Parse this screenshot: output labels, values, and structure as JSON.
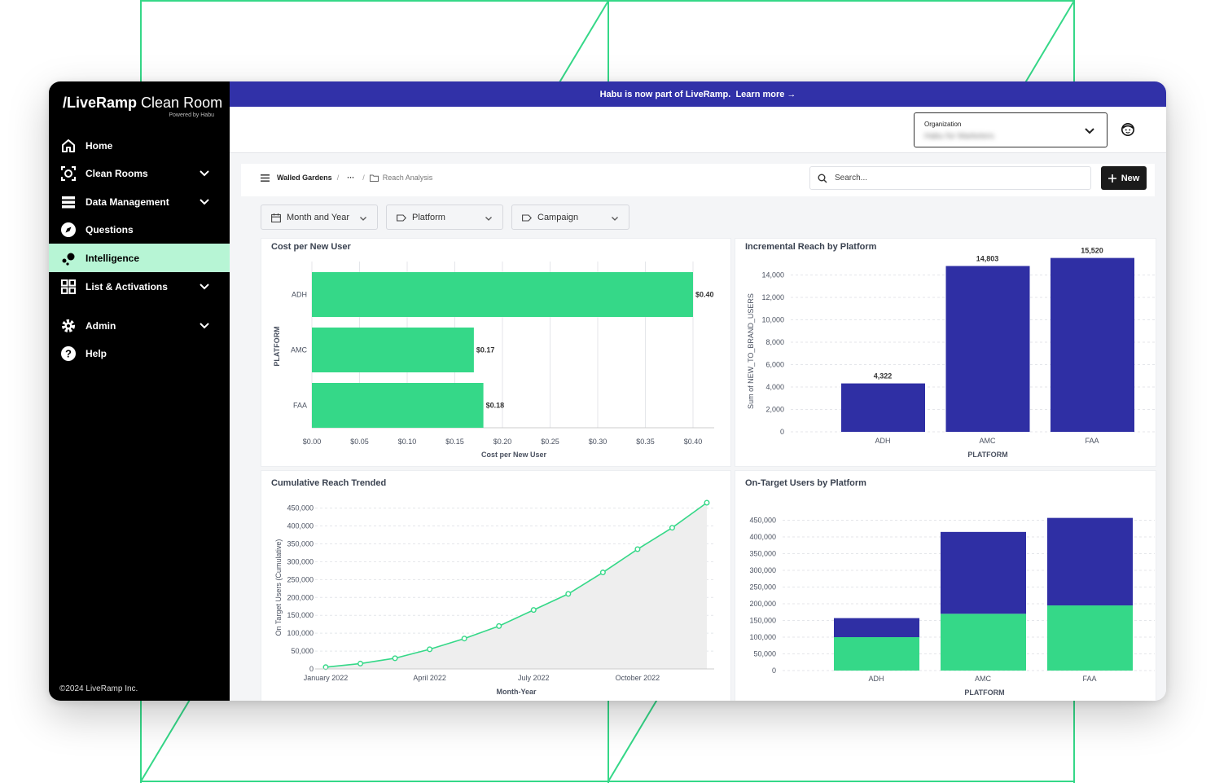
{
  "sidebar": {
    "brand_bold": "/LiveRamp",
    "brand_light": " Clean Room",
    "brand_sub": "Powered by Habu",
    "items": [
      {
        "label": "Home",
        "icon": "home-icon"
      },
      {
        "label": "Clean Rooms",
        "icon": "clean-room-icon"
      },
      {
        "label": "Data Management",
        "icon": "database-icon"
      },
      {
        "label": "Questions",
        "icon": "compass-icon"
      },
      {
        "label": "Intelligence",
        "icon": "intelligence-icon"
      },
      {
        "label": "List & Activations",
        "icon": "grid-icon"
      },
      {
        "label": "Admin",
        "icon": "gear-icon"
      },
      {
        "label": "Help",
        "icon": "help-icon"
      }
    ],
    "copyright": "©2024 LiveRamp Inc."
  },
  "banner": {
    "text": "Habu is now part of LiveRamp.",
    "link": "Learn more →"
  },
  "topbar": {
    "org_label": "Organization",
    "org_value": "Habu for Marketers"
  },
  "breadcrumb": {
    "root": "Walled Gardens",
    "ellipsis": "···",
    "current": "Reach Analysis"
  },
  "search": {
    "placeholder": "Search..."
  },
  "new_button": {
    "label": "New"
  },
  "filters": [
    {
      "label": "Month and Year",
      "icon": "calendar-icon"
    },
    {
      "label": "Platform",
      "icon": "tag-icon"
    },
    {
      "label": "Campaign",
      "icon": "tag-icon"
    }
  ],
  "colors": {
    "green": "#35d888",
    "navy": "#2f2fa4",
    "banner": "#3131a8",
    "active_nav": "#b7f5d5"
  },
  "chart_data": [
    {
      "id": "cost",
      "type": "bar",
      "orientation": "horizontal",
      "title": "Cost per New User",
      "categories": [
        "ADH",
        "AMC",
        "FAA"
      ],
      "values": [
        0.4,
        0.17,
        0.18
      ],
      "data_labels": [
        "$0.40",
        "$0.17",
        "$0.18"
      ],
      "xticks": [
        "$0.00",
        "$0.05",
        "$0.10",
        "$0.15",
        "$0.20",
        "$0.25",
        "$0.30",
        "$0.35",
        "$0.40"
      ],
      "xlim": [
        0,
        0.4
      ],
      "xlabel": "Cost per New User",
      "ylabel": "PLATFORM",
      "color": "#35d888"
    },
    {
      "id": "incr",
      "type": "bar",
      "title": "Incremental Reach by Platform",
      "categories": [
        "ADH",
        "AMC",
        "FAA"
      ],
      "values": [
        4322,
        14803,
        15520
      ],
      "data_labels": [
        "4,322",
        "14,803",
        "15,520"
      ],
      "yticks": [
        "0",
        "2,000",
        "4,000",
        "6,000",
        "8,000",
        "10,000",
        "12,000",
        "14,000"
      ],
      "ylim": [
        0,
        16000
      ],
      "xlabel": "PLATFORM",
      "ylabel": "Sum of NEW_TO_BRAND_USERS",
      "color": "#2f2fa4"
    },
    {
      "id": "cum",
      "type": "area",
      "title": "Cumulative Reach Trended",
      "x": [
        "2022-01",
        "2022-02",
        "2022-03",
        "2022-04",
        "2022-05",
        "2022-06",
        "2022-07",
        "2022-08",
        "2022-09",
        "2022-10",
        "2022-11",
        "2022-12"
      ],
      "values": [
        5000,
        15000,
        30000,
        55000,
        85000,
        120000,
        165000,
        210000,
        270000,
        335000,
        395000,
        465000
      ],
      "xticks": [
        "January 2022",
        "April 2022",
        "July 2022",
        "October 2022"
      ],
      "yticks": [
        "0",
        "50,000",
        "100,000",
        "150,000",
        "200,000",
        "250,000",
        "300,000",
        "350,000",
        "400,000",
        "450,000"
      ],
      "ylim": [
        0,
        465000
      ],
      "xlabel": "Month-Year",
      "ylabel": "On Target Users (Cumulative)",
      "color": "#35d888"
    },
    {
      "id": "ontarget",
      "type": "bar",
      "stacked": true,
      "title": "On-Target Users by Platform",
      "categories": [
        "ADH",
        "AMC",
        "FAA"
      ],
      "series": [
        {
          "values": [
            100000,
            170000,
            195000
          ],
          "color": "#35d888"
        },
        {
          "values": [
            57000,
            245000,
            262000
          ],
          "color": "#2f2fa4"
        }
      ],
      "yticks": [
        "0",
        "50,000",
        "100,000",
        "150,000",
        "200,000",
        "250,000",
        "300,000",
        "350,000",
        "400,000",
        "450,000"
      ],
      "ylim": [
        0,
        450000
      ],
      "xlabel": "PLATFORM"
    }
  ]
}
